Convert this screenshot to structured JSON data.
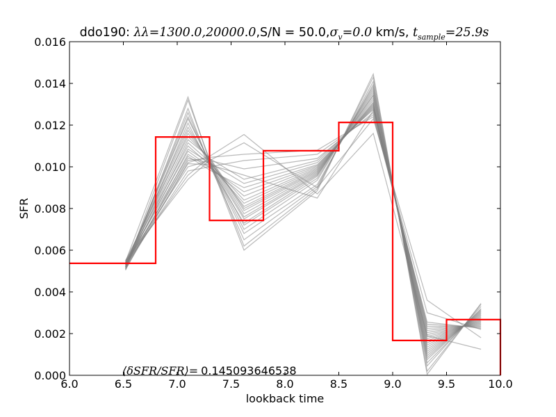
{
  "chart_data": {
    "type": "line",
    "title_parts": {
      "prefix": "ddo190: ",
      "lambda": "λλ=1300.0,20000.0",
      "sn": ",S/N = 50.0,",
      "sigma_sym": "σ",
      "sigma_sub": "v",
      "sigma_val": "=0.0",
      "kms": " km/s, ",
      "t_sym": "t",
      "t_sub": "sample",
      "t_val": "=25.9s"
    },
    "xlabel": "lookback time",
    "ylabel": "SFR",
    "xlim": [
      6.0,
      10.0
    ],
    "ylim": [
      0.0,
      0.016
    ],
    "xticks": [
      "6.0",
      "6.5",
      "7.0",
      "7.5",
      "8.0",
      "8.5",
      "9.0",
      "9.5",
      "10.0"
    ],
    "yticks": [
      "0.000",
      "0.002",
      "0.004",
      "0.006",
      "0.008",
      "0.010",
      "0.012",
      "0.014",
      "0.016"
    ],
    "annotation": {
      "math": "⟨δSFR/SFR⟩=",
      "value": "0.145093646538"
    },
    "colors": {
      "true_sfh": "#ff0000",
      "samples": "#808080"
    },
    "true_sfh": {
      "edges": [
        6.0,
        6.8,
        7.3,
        7.8,
        8.5,
        9.0,
        9.5,
        10.0
      ],
      "values": [
        0.00537,
        0.01143,
        0.00743,
        0.01077,
        0.01213,
        0.00167,
        0.00267
      ]
    },
    "samples": {
      "x": [
        6.52,
        7.1,
        7.3,
        7.62,
        8.3,
        8.82,
        9.32,
        9.82
      ],
      "series": [
        [
          0.00545,
          0.01335,
          0.01025,
          0.006,
          0.00885,
          0.01445,
          5e-05,
          0.00345
        ],
        [
          0.00515,
          0.0132,
          0.01035,
          0.0062,
          0.00895,
          0.0143,
          0.0002,
          0.0034
        ],
        [
          0.00505,
          0.0128,
          0.0101,
          0.0065,
          0.00905,
          0.0141,
          0.00045,
          0.0033
        ],
        [
          0.0052,
          0.0126,
          0.01015,
          0.0068,
          0.00915,
          0.01395,
          0.0006,
          0.0032
        ],
        [
          0.0053,
          0.0124,
          0.0102,
          0.007,
          0.00935,
          0.01385,
          0.00075,
          0.00315
        ],
        [
          0.00525,
          0.0123,
          0.01025,
          0.0072,
          0.00945,
          0.01375,
          0.00085,
          0.0031
        ],
        [
          0.0051,
          0.0121,
          0.01005,
          0.0073,
          0.00955,
          0.01365,
          0.00095,
          0.00305
        ],
        [
          0.0054,
          0.0119,
          0.0102,
          0.0075,
          0.0096,
          0.01355,
          0.00105,
          0.003
        ],
        [
          0.00535,
          0.01175,
          0.0103,
          0.0076,
          0.00965,
          0.01345,
          0.00115,
          0.00295
        ],
        [
          0.0052,
          0.0116,
          0.01035,
          0.00775,
          0.0097,
          0.0134,
          0.00125,
          0.0029
        ],
        [
          0.0055,
          0.01145,
          0.0104,
          0.0079,
          0.00975,
          0.0133,
          0.00135,
          0.00285
        ],
        [
          0.0053,
          0.0113,
          0.01045,
          0.008,
          0.0098,
          0.0132,
          0.00145,
          0.0028
        ],
        [
          0.00515,
          0.01115,
          0.01025,
          0.0081,
          0.00985,
          0.0131,
          0.00155,
          0.00275
        ],
        [
          0.00545,
          0.011,
          0.0101,
          0.00825,
          0.0099,
          0.01305,
          0.00165,
          0.0027
        ],
        [
          0.00525,
          0.01085,
          0.0102,
          0.0084,
          0.00995,
          0.013,
          0.00175,
          0.00265
        ],
        [
          0.00535,
          0.01075,
          0.01,
          0.0086,
          0.01,
          0.01295,
          0.00185,
          0.0026
        ],
        [
          0.00505,
          0.0106,
          0.00995,
          0.0088,
          0.01005,
          0.0129,
          0.00195,
          0.00255
        ],
        [
          0.0054,
          0.0105,
          0.00985,
          0.009,
          0.0101,
          0.01285,
          0.00205,
          0.0025
        ],
        [
          0.0052,
          0.0104,
          0.0102,
          0.0092,
          0.0102,
          0.0128,
          0.00215,
          0.00245
        ],
        [
          0.0053,
          0.0103,
          0.0104,
          0.0094,
          0.0103,
          0.01275,
          0.00225,
          0.0024
        ],
        [
          0.0051,
          0.01015,
          0.0101,
          0.0096,
          0.0085,
          0.0127,
          0.00235,
          0.00235
        ],
        [
          0.0054,
          0.01,
          0.0103,
          0.0099,
          0.0104,
          0.0126,
          0.00245,
          0.0023
        ],
        [
          0.00525,
          0.0098,
          0.01,
          0.0103,
          0.0106,
          0.0125,
          0.00255,
          0.00225
        ],
        [
          0.00535,
          0.0096,
          0.01045,
          0.0106,
          0.0108,
          0.0124,
          0.003,
          0.0022
        ],
        [
          0.0055,
          0.0094,
          0.0103,
          0.01115,
          0.009,
          0.0123,
          0.0036,
          0.0018
        ],
        [
          0.00515,
          0.0102,
          0.0105,
          0.01155,
          0.0087,
          0.0116,
          0.0019,
          0.00125
        ]
      ]
    }
  }
}
